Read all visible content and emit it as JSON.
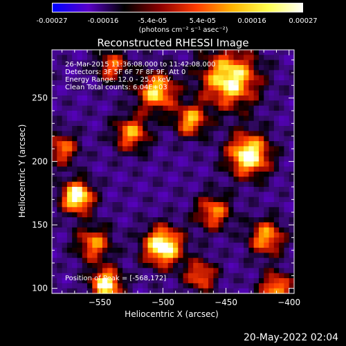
{
  "colorbar": {
    "labels": [
      "-0.00027",
      "-0.00016",
      "-5.4e-05",
      "5.4e-05",
      "0.00016",
      "0.00027"
    ],
    "unit_label": "(photons cm⁻² s⁻¹ asec⁻²)",
    "colors": [
      "#0000ff",
      "#5a00c8",
      "#000000",
      "#8c0000",
      "#ff3c00",
      "#ffb400",
      "#ffff50",
      "#ffffff"
    ]
  },
  "image_info": {
    "time_range": "26-Mar-2015 11:36:08.000 to 11:42:08.000",
    "detectors": "Detectors: 3F 5F 6F 7F 8F 9F, Att 0",
    "energy": "Energy Range: 12.0 - 25.0 keV",
    "method": "Clean     Total counts: 6.04E+03",
    "peak": "Position of Peak = [-568,172]"
  },
  "timestamp": "20-May-2022 02:04",
  "chart_data": {
    "type": "heatmap",
    "title": "Reconstructed RHESSI Image",
    "xlabel": "Heliocentric X (arcsec)",
    "ylabel": "Heliocentric Y (arcsec)",
    "xlim": [
      -588,
      -396
    ],
    "ylim": [
      96,
      288
    ],
    "x_ticks": [
      -550,
      -500,
      -450,
      -400
    ],
    "x_tick_labels": [
      "−550",
      "−500",
      "−450",
      "−400"
    ],
    "y_ticks": [
      100,
      150,
      200,
      250
    ],
    "y_tick_labels": [
      "100",
      "150",
      "200",
      "250"
    ],
    "z_range": [
      -0.00027,
      0.00027
    ],
    "peak_position": [
      -568,
      172
    ],
    "sources": [
      {
        "x": -500,
        "y": 133,
        "amp": 1.0,
        "sigma": 11
      },
      {
        "x": -568,
        "y": 172,
        "amp": 1.0,
        "sigma": 9
      },
      {
        "x": -432,
        "y": 205,
        "amp": 0.95,
        "sigma": 12
      },
      {
        "x": -447,
        "y": 265,
        "amp": 0.85,
        "sigma": 16
      },
      {
        "x": -545,
        "y": 103,
        "amp": 0.85,
        "sigma": 9
      },
      {
        "x": -505,
        "y": 255,
        "amp": 0.7,
        "sigma": 11
      },
      {
        "x": -478,
        "y": 232,
        "amp": 0.55,
        "sigma": 9
      },
      {
        "x": -525,
        "y": 222,
        "amp": 0.5,
        "sigma": 10
      },
      {
        "x": -418,
        "y": 140,
        "amp": 0.55,
        "sigma": 10
      },
      {
        "x": -555,
        "y": 135,
        "amp": 0.45,
        "sigma": 10
      },
      {
        "x": -580,
        "y": 210,
        "amp": 0.4,
        "sigma": 9
      },
      {
        "x": -460,
        "y": 160,
        "amp": 0.45,
        "sigma": 10
      },
      {
        "x": -410,
        "y": 100,
        "amp": 0.55,
        "sigma": 9
      },
      {
        "x": -470,
        "y": 110,
        "amp": 0.4,
        "sigma": 9
      },
      {
        "x": -540,
        "y": 275,
        "amp": 0.35,
        "sigma": 9
      }
    ],
    "background_level": -0.35
  }
}
